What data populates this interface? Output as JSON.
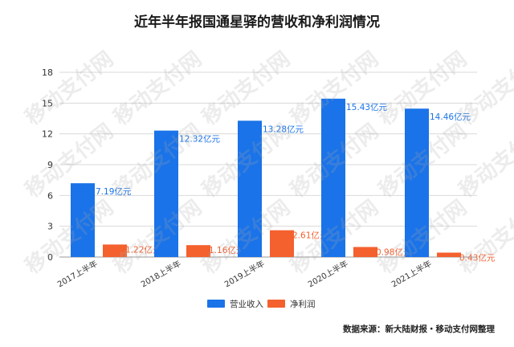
{
  "title": "近年半年报国通星驿的营收和净利润情况",
  "source_note": "数据来源：新大陆财报・移动支付网整理",
  "watermark_text": "移动支付网",
  "colors": {
    "revenue": "#1a73e8",
    "profit": "#f4602e",
    "grid": "#d9d9d9",
    "axis_text": "#333333"
  },
  "chart_data": {
    "type": "bar",
    "title": "近年半年报国通星驿的营收和净利润情况",
    "categories": [
      "2017上半年",
      "2018上半年",
      "2019上半年",
      "2020上半年",
      "2021上半年"
    ],
    "series": [
      {
        "name": "营业收入",
        "values": [
          7.19,
          12.32,
          13.28,
          15.43,
          14.46
        ],
        "labels": [
          "7.19亿元",
          "12.32亿元",
          "13.28亿元",
          "15.43亿元",
          "14.46亿元"
        ]
      },
      {
        "name": "净利润",
        "values": [
          1.22,
          1.16,
          2.61,
          0.98,
          0.43
        ],
        "labels": [
          "1.22亿元",
          "1.16亿元",
          "2.61亿元",
          "0.98亿元",
          "0.43亿元"
        ]
      }
    ],
    "ylim": [
      0,
      18
    ],
    "yticks": [
      0,
      3,
      6,
      9,
      12,
      15,
      18
    ],
    "xlabel": "",
    "ylabel": "",
    "grid": true,
    "legend": "bottom-center"
  }
}
